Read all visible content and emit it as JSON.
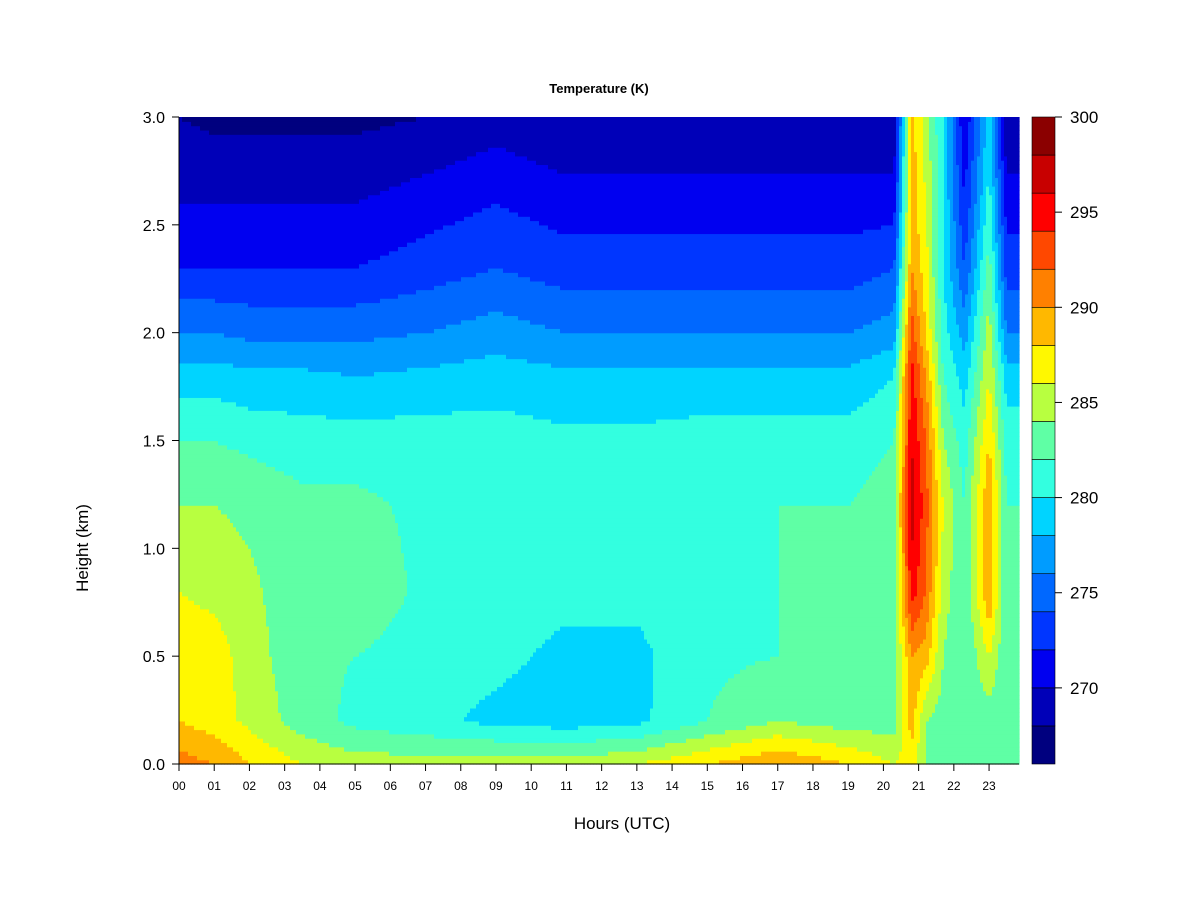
{
  "chart_data": {
    "type": "heatmap",
    "title": "Temperature (K)",
    "xlabel": "Hours (UTC)",
    "ylabel": "Height (km)",
    "x_ticks": [
      "00",
      "01",
      "02",
      "03",
      "04",
      "05",
      "06",
      "07",
      "08",
      "09",
      "10",
      "11",
      "12",
      "13",
      "14",
      "15",
      "16",
      "17",
      "18",
      "19",
      "20",
      "21",
      "22",
      "23"
    ],
    "y_ticks": [
      "0.0",
      "0.5",
      "1.0",
      "1.5",
      "2.0",
      "2.5",
      "3.0"
    ],
    "xlim": [
      0,
      23.85
    ],
    "ylim": [
      0,
      3.0
    ],
    "colorbar": {
      "ticks": [
        "270",
        "275",
        "280",
        "285",
        "290",
        "295",
        "300"
      ],
      "min": 266,
      "max": 300,
      "levels": [
        266,
        268,
        270,
        272,
        274,
        276,
        278,
        280,
        282,
        284,
        286,
        288,
        290,
        292,
        294,
        296,
        298,
        300
      ],
      "colors": [
        "#00007F",
        "#0000B8",
        "#0000F0",
        "#0036FF",
        "#0068FF",
        "#009CFF",
        "#00D4FF",
        "#33FFE0",
        "#5FFFA5",
        "#B8FF40",
        "#FFF800",
        "#FFB800",
        "#FF8000",
        "#FF4800",
        "#FF0000",
        "#C80000",
        "#8B0000"
      ]
    },
    "profiles": [
      {
        "hour": 0.0,
        "z": [
          0.0,
          0.2,
          0.5,
          0.8,
          1.2,
          1.5,
          1.8,
          2.0,
          2.3,
          2.6,
          3.0
        ],
        "t": [
          291,
          288,
          287,
          286,
          284,
          282,
          279,
          276,
          272,
          270,
          268
        ]
      },
      {
        "hour": 1.0,
        "z": [
          0.0,
          0.2,
          0.5,
          0.8,
          1.2,
          1.5,
          1.8,
          2.0,
          2.3,
          2.6,
          3.0
        ],
        "t": [
          290,
          287,
          287,
          285.5,
          284,
          282,
          279,
          276,
          272,
          270,
          267.5
        ]
      },
      {
        "hour": 2.0,
        "z": [
          0.0,
          0.2,
          0.5,
          0.8,
          1.2,
          1.5,
          1.8,
          2.0,
          2.3,
          2.6,
          3.0
        ],
        "t": [
          288,
          285.5,
          285,
          284.5,
          283.5,
          281.5,
          278.5,
          275.5,
          272,
          270,
          267.5
        ]
      },
      {
        "hour": 3.5,
        "z": [
          0.0,
          0.2,
          0.5,
          0.8,
          1.2,
          1.5,
          1.8,
          2.0,
          2.3,
          2.6,
          3.0
        ],
        "t": [
          286,
          283,
          282.5,
          282.5,
          282.5,
          281,
          278.5,
          275.5,
          272,
          270,
          267.5
        ]
      },
      {
        "hour": 5.0,
        "z": [
          0.0,
          0.2,
          0.5,
          0.8,
          1.2,
          1.5,
          1.8,
          2.0,
          2.3,
          2.6,
          3.0
        ],
        "t": [
          285,
          281.5,
          282,
          283.5,
          282.5,
          281,
          278,
          275.5,
          272,
          270,
          267.5
        ]
      },
      {
        "hour": 7.0,
        "z": [
          0.0,
          0.2,
          0.5,
          0.8,
          1.2,
          1.5,
          1.8,
          2.0,
          2.3,
          2.6,
          3.0
        ],
        "t": [
          285,
          280.5,
          281,
          281.5,
          281.5,
          281,
          278.5,
          276,
          273,
          271,
          268
        ]
      },
      {
        "hour": 9.0,
        "z": [
          0.0,
          0.2,
          0.5,
          0.8,
          1.2,
          1.5,
          1.8,
          2.0,
          2.3,
          2.6,
          3.0
        ],
        "t": [
          285,
          279.5,
          280.5,
          281,
          281.5,
          281,
          279,
          277,
          274,
          272,
          269
        ]
      },
      {
        "hour": 11.0,
        "z": [
          0.0,
          0.2,
          0.5,
          0.8,
          1.2,
          1.5,
          1.8,
          2.0,
          2.3,
          2.6,
          3.0
        ],
        "t": [
          285,
          279,
          279.5,
          280.5,
          281,
          280.5,
          278.5,
          276,
          273,
          271,
          268
        ]
      },
      {
        "hour": 13.0,
        "z": [
          0.0,
          0.2,
          0.5,
          0.8,
          1.2,
          1.5,
          1.8,
          2.0,
          2.3,
          2.6,
          3.0
        ],
        "t": [
          286,
          279.5,
          279.5,
          280.5,
          281,
          280.5,
          278.5,
          276,
          273,
          271,
          268
        ]
      },
      {
        "hour": 15.0,
        "z": [
          0.0,
          0.2,
          0.5,
          0.8,
          1.2,
          1.5,
          1.8,
          2.0,
          2.3,
          2.6,
          3.0
        ],
        "t": [
          288,
          282,
          281.5,
          281.5,
          281.5,
          281,
          278.5,
          276,
          273,
          271,
          268
        ]
      },
      {
        "hour": 17.0,
        "z": [
          0.0,
          0.2,
          0.5,
          0.8,
          1.2,
          1.5,
          1.8,
          2.0,
          2.3,
          2.6,
          3.0
        ],
        "t": [
          290,
          284,
          282,
          282,
          282,
          281,
          278.5,
          276,
          273,
          271,
          268
        ]
      },
      {
        "hour": 19.0,
        "z": [
          0.0,
          0.2,
          0.5,
          0.8,
          1.2,
          1.5,
          1.8,
          2.0,
          2.3,
          2.6,
          3.0
        ],
        "t": [
          288,
          283,
          282,
          282,
          282,
          281,
          278.5,
          276,
          273,
          271,
          268
        ]
      },
      {
        "hour": 20.3,
        "z": [
          0.0,
          0.2,
          0.5,
          0.8,
          1.2,
          1.5,
          1.8,
          2.0,
          2.3,
          2.6,
          3.0
        ],
        "t": [
          286,
          283,
          283,
          283,
          283,
          282,
          280,
          277,
          274,
          271,
          268
        ]
      },
      {
        "hour": 20.8,
        "z": [
          0.0,
          0.2,
          0.5,
          0.8,
          1.2,
          1.5,
          1.8,
          2.0,
          2.3,
          2.6,
          3.0
        ],
        "t": [
          287,
          289,
          290,
          295,
          297,
          296,
          295,
          293,
          290,
          289,
          289
        ]
      },
      {
        "hour": 21.2,
        "z": [
          0.0,
          0.2,
          0.5,
          0.8,
          1.2,
          1.5,
          1.8,
          2.0,
          2.3,
          2.6,
          3.0
        ],
        "t": [
          284,
          284,
          289,
          292,
          293,
          292,
          290,
          288,
          287,
          286,
          285
        ]
      },
      {
        "hour": 21.7,
        "z": [
          0.0,
          0.2,
          0.5,
          0.8,
          1.2,
          1.5,
          1.8,
          2.0,
          2.3,
          2.6,
          3.0
        ],
        "t": [
          283,
          283,
          284,
          285,
          286,
          284,
          282,
          281,
          280,
          280,
          280
        ]
      },
      {
        "hour": 22.3,
        "z": [
          0.0,
          0.2,
          0.5,
          0.8,
          1.2,
          1.5,
          1.8,
          2.0,
          2.3,
          2.6,
          3.0
        ],
        "t": [
          283,
          282,
          282,
          282,
          282,
          281,
          279,
          277,
          274,
          272,
          270
        ]
      },
      {
        "hour": 23.0,
        "z": [
          0.0,
          0.2,
          0.5,
          0.8,
          1.2,
          1.5,
          1.8,
          2.0,
          2.3,
          2.6,
          3.0
        ],
        "t": [
          284,
          283,
          286,
          290,
          290,
          288,
          286,
          285,
          283,
          281,
          279
        ]
      },
      {
        "hour": 23.5,
        "z": [
          0.0,
          0.2,
          0.5,
          0.8,
          1.2,
          1.5,
          1.8,
          2.0,
          2.3,
          2.6,
          3.0
        ],
        "t": [
          283,
          282,
          282,
          282,
          282,
          281,
          279,
          276,
          273,
          271,
          268
        ]
      },
      {
        "hour": 23.85,
        "z": [
          0.0,
          0.2,
          0.5,
          0.8,
          1.2,
          1.5,
          1.8,
          2.0,
          2.3,
          2.6,
          3.0
        ],
        "t": [
          283,
          282,
          282,
          282,
          282,
          281,
          279,
          276,
          273,
          271,
          268
        ]
      }
    ]
  }
}
